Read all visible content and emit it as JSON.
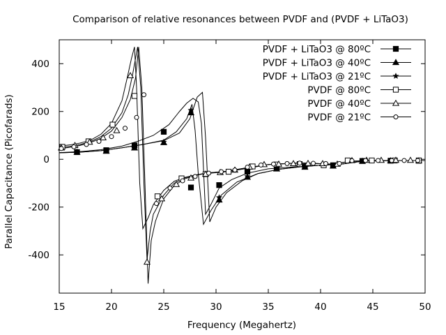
{
  "chart_data": {
    "type": "line",
    "title": "Comparison of relative resonances between PVDF and (PVDF + LiTaO3)",
    "xlabel": "Frequency (Megahertz)",
    "ylabel": "Parallel Capacitance (Picofarads)",
    "xlim": [
      15,
      50
    ],
    "ylim": [
      -560,
      500
    ],
    "xticks": [
      15,
      20,
      25,
      30,
      35,
      40,
      45,
      50
    ],
    "yticks": [
      -400,
      -200,
      0,
      200,
      400
    ],
    "grid": false,
    "legend_position": "top-right",
    "colors": {
      "line": "#000000",
      "background": "#ffffff"
    },
    "series": [
      {
        "name": "PVDF + LiTaO3 @ 80ºC",
        "marker": "square-filled",
        "x": [
          15,
          17,
          19,
          21,
          22.5,
          24,
          25.5,
          26.5,
          27.2,
          27.8,
          28.3,
          28.6,
          29.0,
          29.5,
          30.3,
          31.5,
          33,
          35,
          38,
          42,
          44,
          46,
          48,
          50
        ],
        "y": [
          28,
          32,
          40,
          55,
          75,
          100,
          145,
          200,
          235,
          255,
          240,
          150,
          -230,
          -190,
          -120,
          -85,
          -58,
          -40,
          -30,
          -20,
          -8,
          -5,
          -5,
          -5
        ],
        "markers_x": [
          16.7,
          19.5,
          22.2,
          25,
          27.6,
          30.3,
          33,
          35.8,
          38.5,
          41.2,
          44,
          46.7,
          49.4
        ],
        "markers_y": [
          30,
          38,
          58,
          115,
          -118,
          -108,
          -52,
          -38,
          -30,
          -25,
          -7,
          -6,
          -6
        ]
      },
      {
        "name": "PVDF + LiTaO3 @ 40ºC",
        "marker": "triangle-filled",
        "x": [
          15,
          17,
          19,
          21,
          23,
          25,
          26.5,
          27.5,
          28.2,
          28.7,
          29.0,
          29.4,
          30.0,
          31,
          32.5,
          34,
          36,
          38,
          40,
          42,
          44,
          46,
          48,
          50
        ],
        "y": [
          27,
          30,
          36,
          48,
          62,
          78,
          110,
          170,
          260,
          280,
          90,
          -262,
          -200,
          -140,
          -90,
          -60,
          -42,
          -32,
          -25,
          -20,
          -8,
          -6,
          -5,
          -5
        ],
        "markers_x": [
          16.7,
          19.5,
          22.2,
          25,
          27.6,
          30.3,
          33,
          35.8,
          38.5,
          41.2,
          44,
          46.7,
          49.4
        ],
        "markers_y": [
          30,
          34,
          48,
          70,
          195,
          -170,
          -75,
          -40,
          -33,
          -28,
          -8,
          -6,
          -6
        ]
      },
      {
        "name": "PVDF + LiTaO3 @ 21ºC",
        "marker": "star",
        "x": [
          15,
          17,
          19,
          21,
          23,
          25,
          26.2,
          27.2,
          27.7,
          28.0,
          28.3,
          28.8,
          29.5,
          30.5,
          32,
          34,
          36,
          38,
          40,
          42,
          44,
          46,
          48,
          50
        ],
        "y": [
          27,
          30,
          36,
          48,
          62,
          80,
          115,
          170,
          230,
          120,
          -60,
          -272,
          -215,
          -150,
          -95,
          -60,
          -42,
          -32,
          -25,
          -20,
          -8,
          -6,
          -5,
          -5
        ],
        "markers_x": [
          16.7,
          19.5,
          22.2,
          25,
          27.6,
          30.3,
          33,
          35.8,
          38.5,
          41.2,
          44,
          46.7,
          49.4
        ],
        "markers_y": [
          30,
          34,
          48,
          72,
          205,
          -160,
          -72,
          -38,
          -32,
          -27,
          -8,
          -6,
          -6
        ]
      },
      {
        "name": "PVDF @ 80ºC",
        "marker": "square-open",
        "x": [
          15,
          16,
          17,
          18,
          19,
          20,
          21,
          21.5,
          21.9,
          22.2,
          22.4,
          22.7,
          23.0,
          23.5,
          24,
          25,
          26,
          27,
          28,
          29,
          31,
          33,
          35,
          38,
          41,
          43,
          45,
          47,
          50
        ],
        "y": [
          55,
          60,
          68,
          80,
          105,
          150,
          245,
          340,
          420,
          470,
          300,
          -100,
          -290,
          -245,
          -190,
          -130,
          -92,
          -76,
          -66,
          -60,
          -52,
          -38,
          -22,
          -15,
          -20,
          -8,
          -5,
          -5,
          -5
        ],
        "markers_x": [
          15.3,
          17.8,
          20.1,
          22.2,
          24.4,
          26.7,
          29,
          31.2,
          33.5,
          35.8,
          38,
          40.3,
          42.6,
          44.9,
          47.1,
          49.4
        ],
        "markers_y": [
          52,
          75,
          145,
          265,
          -155,
          -80,
          -62,
          -52,
          -30,
          -22,
          -20,
          -25,
          -5,
          -5,
          -5,
          -5
        ]
      },
      {
        "name": "PVDF @ 40ºC",
        "marker": "triangle-open",
        "x": [
          15,
          16,
          17,
          18,
          19,
          20,
          21,
          21.6,
          22.0,
          22.5,
          22.8,
          23.1,
          23.4,
          23.7,
          24,
          25,
          26,
          27,
          28,
          29,
          31,
          33,
          35,
          38,
          41,
          43,
          45,
          47,
          50
        ],
        "y": [
          48,
          54,
          62,
          74,
          95,
          130,
          195,
          270,
          350,
          470,
          300,
          -100,
          -420,
          -300,
          -230,
          -150,
          -100,
          -78,
          -66,
          -58,
          -50,
          -35,
          -22,
          -15,
          -20,
          -8,
          -5,
          -5,
          -5
        ],
        "markers_x": [
          15.2,
          16.5,
          17.9,
          19.2,
          20.5,
          21.8,
          23.4,
          24.8,
          26.2,
          27.6,
          29,
          30.4,
          31.8,
          33.2,
          34.6,
          36,
          37.4,
          38.8,
          40.2,
          41.6,
          43,
          44.4,
          45.8,
          47.2,
          48.6
        ],
        "markers_y": [
          48,
          58,
          72,
          90,
          120,
          350,
          -430,
          -165,
          -105,
          -78,
          -62,
          -55,
          -45,
          -32,
          -22,
          -20,
          -18,
          -17,
          -18,
          -20,
          -5,
          -4,
          -4,
          -4,
          -4
        ]
      },
      {
        "name": "PVDF @ 21ºC",
        "marker": "circle-open",
        "x": [
          15,
          16,
          17,
          18,
          19,
          20,
          21,
          21.8,
          22.3,
          22.6,
          22.9,
          23.2,
          23.5,
          23.8,
          24.2,
          25,
          26,
          27,
          28,
          29,
          31,
          33,
          35,
          38,
          41,
          43,
          45,
          47,
          50
        ],
        "y": [
          44,
          50,
          58,
          70,
          88,
          118,
          175,
          250,
          340,
          470,
          300,
          -100,
          -520,
          -340,
          -260,
          -165,
          -110,
          -82,
          -68,
          -58,
          -50,
          -35,
          -22,
          -15,
          -20,
          -8,
          -5,
          -5,
          -5
        ],
        "markers_x": [
          15.2,
          16.4,
          17.6,
          18.8,
          20.0,
          21.3,
          22.4,
          23.1,
          24.3,
          25.6,
          26.8,
          28,
          29.3,
          30.5,
          31.8,
          33,
          34.3,
          35.5,
          36.8,
          38,
          39.3,
          40.5,
          41.8,
          43,
          44.3,
          45.5,
          46.8,
          48,
          49.3
        ],
        "markers_y": [
          45,
          52,
          62,
          75,
          95,
          130,
          175,
          270,
          -185,
          -120,
          -90,
          -72,
          -58,
          -52,
          -45,
          -33,
          -24,
          -20,
          -18,
          -16,
          -17,
          -18,
          -18,
          -6,
          -5,
          -5,
          -5,
          -5,
          -5
        ]
      }
    ]
  }
}
